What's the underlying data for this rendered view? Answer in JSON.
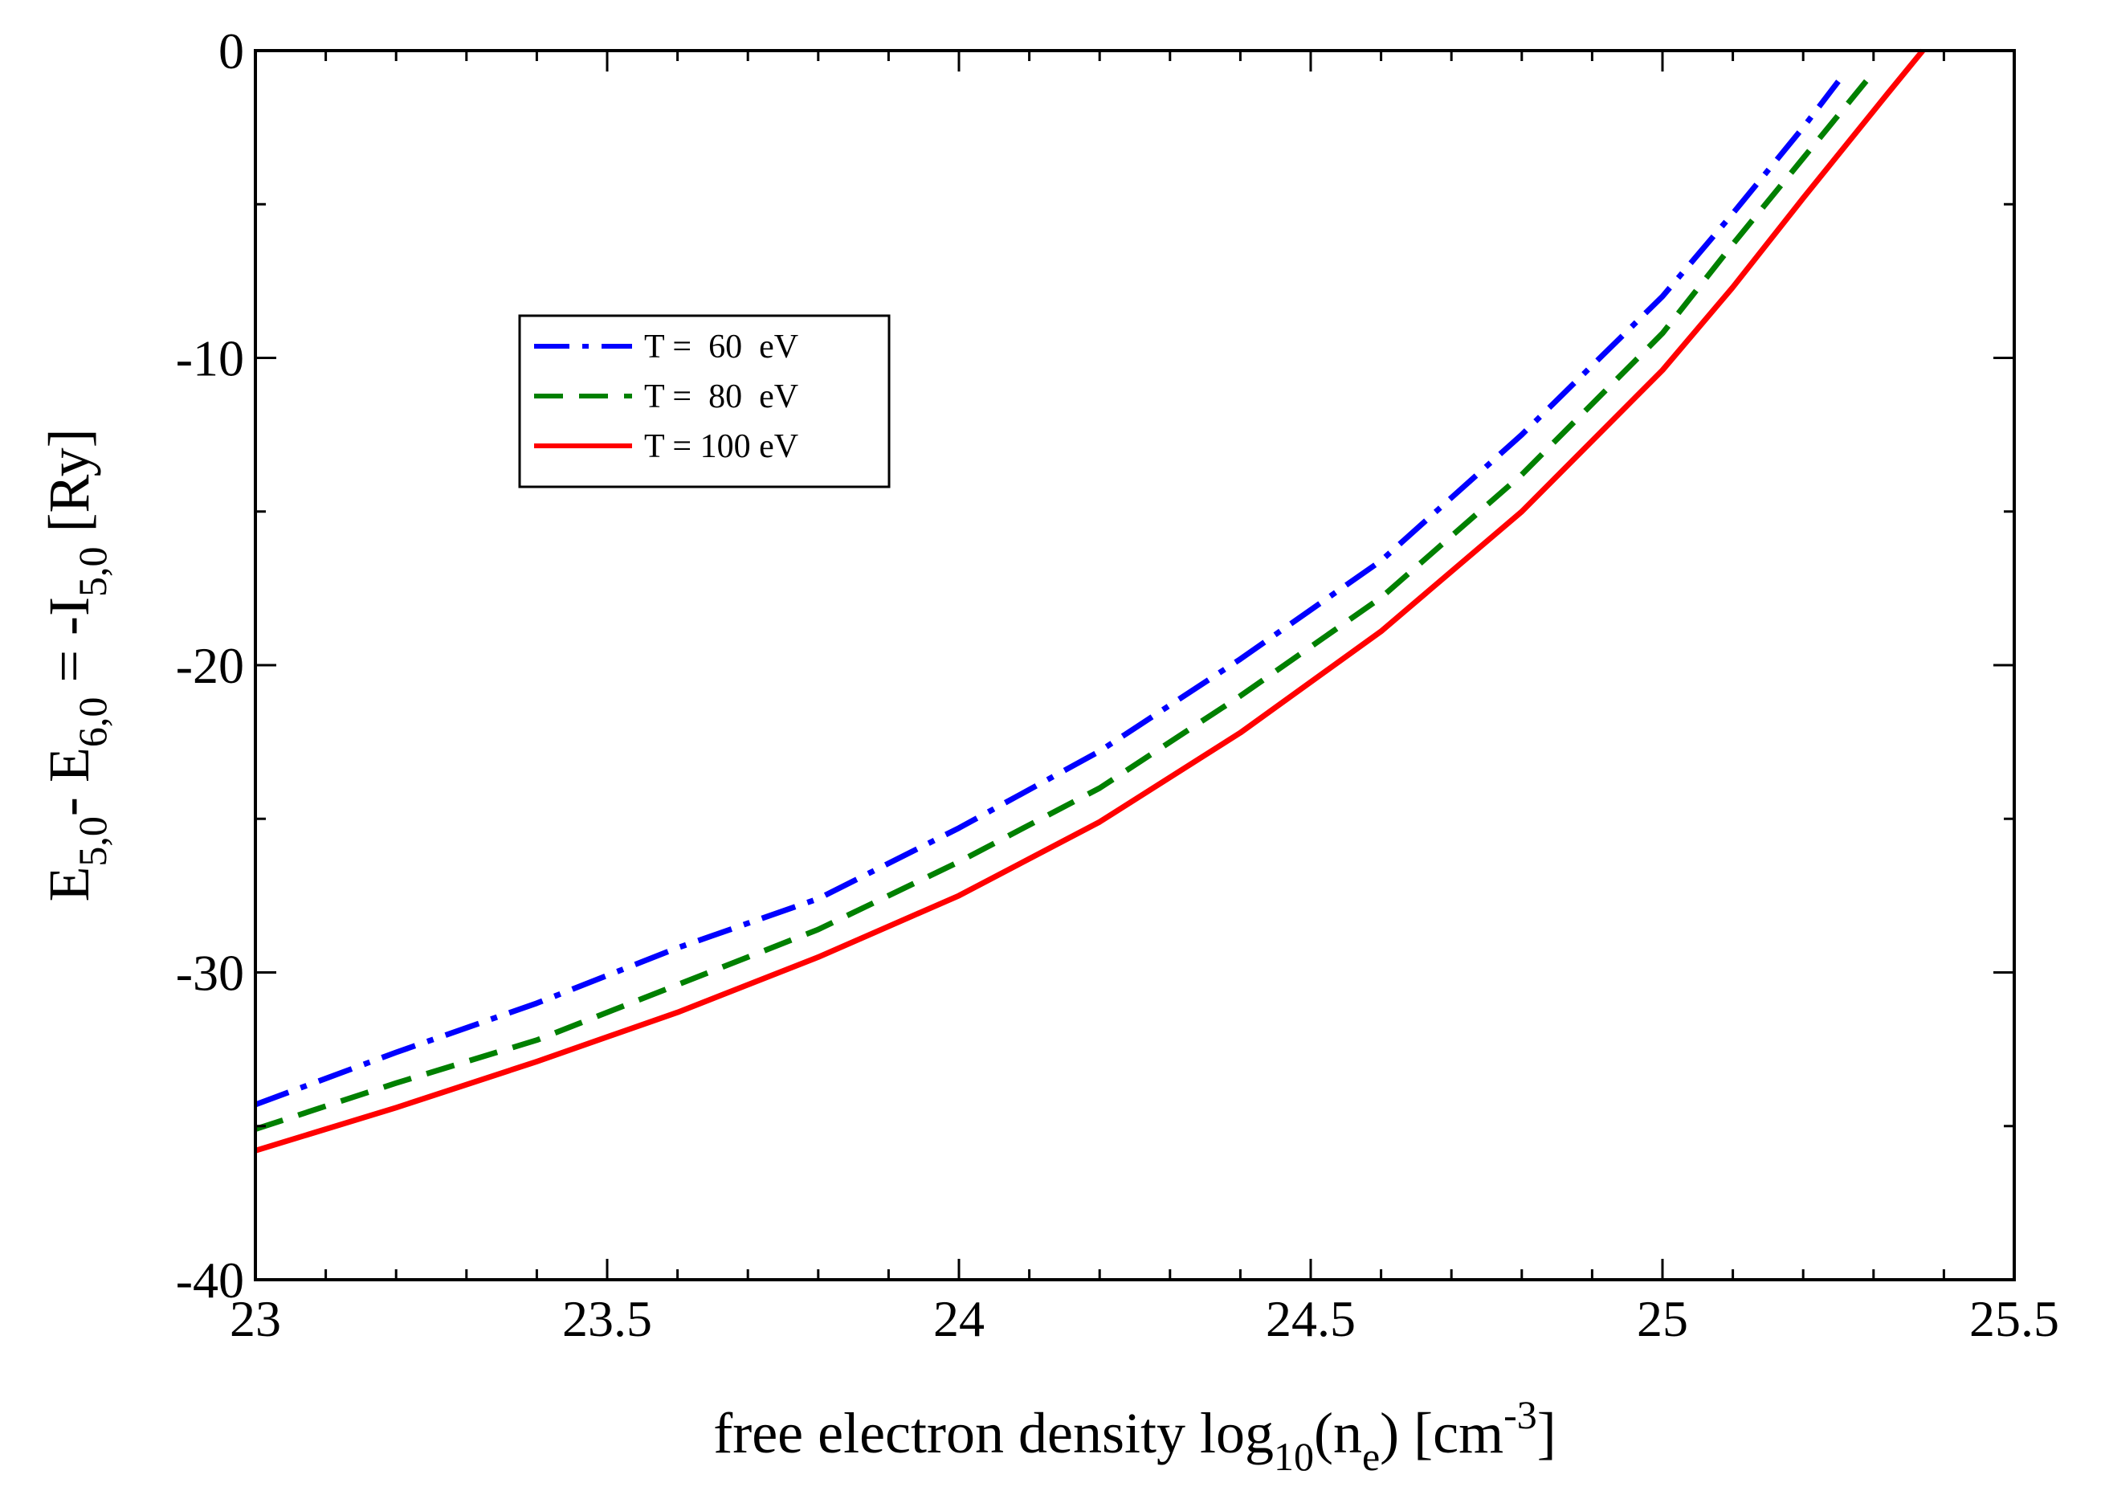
{
  "chart_data": {
    "type": "line",
    "xlabel": {
      "before": "free electron density log",
      "sub1": "10",
      "mid": "(n",
      "sub2": "e",
      "after1": ") [cm",
      "sup": "-3",
      "after2": "]"
    },
    "ylabel": {
      "E1": "E",
      "sub1": "5,0",
      "minus": "- ",
      "E2": "E",
      "sub2": "6,0",
      "eq": " = -I",
      "sub3": "5,0",
      "unit": " [Ry]"
    },
    "xlim": [
      23,
      25.5
    ],
    "ylim": [
      -40,
      0
    ],
    "x_ticks": [
      {
        "value": 23,
        "label": "23"
      },
      {
        "value": 23.5,
        "label": "23.5"
      },
      {
        "value": 24,
        "label": "24"
      },
      {
        "value": 24.5,
        "label": "24.5"
      },
      {
        "value": 25,
        "label": "25"
      },
      {
        "value": 25.5,
        "label": "25.5"
      }
    ],
    "y_ticks": [
      {
        "value": 0,
        "label": "0"
      },
      {
        "value": -10,
        "label": "-10"
      },
      {
        "value": -20,
        "label": "-20"
      },
      {
        "value": -30,
        "label": "-30"
      },
      {
        "value": -40,
        "label": "-40"
      }
    ],
    "x_minor_step": 0.1,
    "y_minor_step": 5,
    "grid": false,
    "legend_position": "upper-left",
    "series": [
      {
        "name": "T =  60  eV",
        "color": "#0000ff",
        "dash": "dash-dot",
        "points": [
          [
            23.0,
            -34.3
          ],
          [
            23.2,
            -32.6
          ],
          [
            23.4,
            -31.0
          ],
          [
            23.6,
            -29.2
          ],
          [
            23.8,
            -27.6
          ],
          [
            24.0,
            -25.3
          ],
          [
            24.2,
            -22.8
          ],
          [
            24.4,
            -19.8
          ],
          [
            24.6,
            -16.6
          ],
          [
            24.8,
            -12.5
          ],
          [
            25.0,
            -8.0
          ],
          [
            25.1,
            -5.3
          ],
          [
            25.2,
            -2.5
          ],
          [
            25.25,
            -1.0
          ]
        ]
      },
      {
        "name": "T =  80  eV",
        "color": "#008000",
        "dash": "dashed",
        "points": [
          [
            23.0,
            -35.1
          ],
          [
            23.2,
            -33.6
          ],
          [
            23.4,
            -32.2
          ],
          [
            23.6,
            -30.4
          ],
          [
            23.8,
            -28.6
          ],
          [
            24.0,
            -26.4
          ],
          [
            24.2,
            -24.0
          ],
          [
            24.4,
            -21.0
          ],
          [
            24.6,
            -17.8
          ],
          [
            24.8,
            -13.8
          ],
          [
            25.0,
            -9.2
          ],
          [
            25.1,
            -6.3
          ],
          [
            25.2,
            -3.5
          ],
          [
            25.3,
            -0.7
          ]
        ]
      },
      {
        "name": "T = 100 eV",
        "color": "#ff0000",
        "dash": "solid",
        "points": [
          [
            23.0,
            -35.8
          ],
          [
            23.2,
            -34.4
          ],
          [
            23.4,
            -32.9
          ],
          [
            23.6,
            -31.3
          ],
          [
            23.8,
            -29.5
          ],
          [
            24.0,
            -27.5
          ],
          [
            24.2,
            -25.1
          ],
          [
            24.4,
            -22.2
          ],
          [
            24.6,
            -18.9
          ],
          [
            24.8,
            -15.0
          ],
          [
            25.0,
            -10.4
          ],
          [
            25.1,
            -7.7
          ],
          [
            25.2,
            -4.8
          ],
          [
            25.32,
            -1.4
          ],
          [
            25.37,
            0.0
          ]
        ]
      }
    ]
  }
}
